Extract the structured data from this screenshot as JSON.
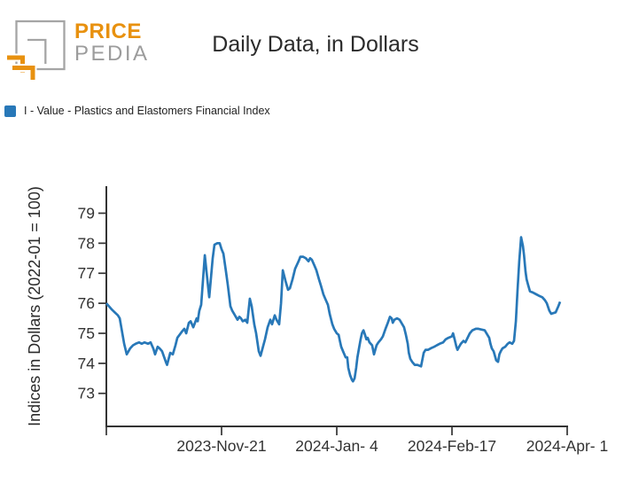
{
  "header": {
    "logo": {
      "price": "PRICE",
      "pedia": "PEDIA"
    },
    "title": "Daily Data, in Dollars"
  },
  "legend": {
    "label": "I - Value - Plastics and Elastomers Financial Index",
    "swatch_color": "#2878b8"
  },
  "colors": {
    "line": "#2878b8",
    "axis": "#333333",
    "logo_orange": "#e8910f",
    "logo_gray": "#a5a5a5"
  },
  "chart_data": {
    "type": "line",
    "title": "Daily Data, in Dollars",
    "xlabel": "",
    "ylabel": "Indices in Dollars (2022-01 = 100)",
    "grid": false,
    "legend_position": "top-left",
    "x_unit": "days since 2023-10-08",
    "x_start_date": "2023-10-08",
    "x_end_date": "2024-04-01",
    "xlim": [
      0,
      176
    ],
    "ylim": [
      71.9,
      79.9
    ],
    "yticks": [
      73,
      74,
      75,
      76,
      77,
      78,
      79
    ],
    "xticks": [
      {
        "d": 0,
        "label": ""
      },
      {
        "d": 44,
        "label": "2023-Nov-21"
      },
      {
        "d": 88,
        "label": "2024-Jan- 4"
      },
      {
        "d": 132,
        "label": "2024-Feb-17"
      },
      {
        "d": 176,
        "label": "2024-Apr- 1"
      }
    ],
    "series": [
      {
        "name": "I - Value - Plastics and Elastomers Financial Index",
        "color": "#2878b8",
        "points": [
          [
            0,
            76.0
          ],
          [
            2,
            75.8
          ],
          [
            4.4,
            75.6
          ],
          [
            5.1,
            75.5
          ],
          [
            6.8,
            74.65
          ],
          [
            7.8,
            74.3
          ],
          [
            9.1,
            74.5
          ],
          [
            10.2,
            74.6
          ],
          [
            11.2,
            74.65
          ],
          [
            12.5,
            74.7
          ],
          [
            13.5,
            74.65
          ],
          [
            14.6,
            74.7
          ],
          [
            15.9,
            74.65
          ],
          [
            16.9,
            74.7
          ],
          [
            17.9,
            74.5
          ],
          [
            18.6,
            74.3
          ],
          [
            19.6,
            74.55
          ],
          [
            20.3,
            74.5
          ],
          [
            21.3,
            74.4
          ],
          [
            22.7,
            74.05
          ],
          [
            23.2,
            73.95
          ],
          [
            24.4,
            74.35
          ],
          [
            25.4,
            74.3
          ],
          [
            26.4,
            74.6
          ],
          [
            27.1,
            74.85
          ],
          [
            28.8,
            75.05
          ],
          [
            29.8,
            75.15
          ],
          [
            30.5,
            75.0
          ],
          [
            31.5,
            75.35
          ],
          [
            32.2,
            75.4
          ],
          [
            33.2,
            75.2
          ],
          [
            34.5,
            75.5
          ],
          [
            34.9,
            75.4
          ],
          [
            35.5,
            75.75
          ],
          [
            36.2,
            75.95
          ],
          [
            37.6,
            77.6
          ],
          [
            38.3,
            77.0
          ],
          [
            39.3,
            76.2
          ],
          [
            39.9,
            76.8
          ],
          [
            40.6,
            77.5
          ],
          [
            41.3,
            77.95
          ],
          [
            42.3,
            78.0
          ],
          [
            43.3,
            78.0
          ],
          [
            44.0,
            77.8
          ],
          [
            44.7,
            77.65
          ],
          [
            45.7,
            77.05
          ],
          [
            46.4,
            76.6
          ],
          [
            47.4,
            75.9
          ],
          [
            48.1,
            75.75
          ],
          [
            49.1,
            75.6
          ],
          [
            50.1,
            75.45
          ],
          [
            50.8,
            75.55
          ],
          [
            51.4,
            75.5
          ],
          [
            52.1,
            75.4
          ],
          [
            53.1,
            75.45
          ],
          [
            53.8,
            75.35
          ],
          [
            54.8,
            76.15
          ],
          [
            55.5,
            75.9
          ],
          [
            56.5,
            75.3
          ],
          [
            57.2,
            75.0
          ],
          [
            58.2,
            74.4
          ],
          [
            58.9,
            74.25
          ],
          [
            60.6,
            74.8
          ],
          [
            61.6,
            75.2
          ],
          [
            62.6,
            75.45
          ],
          [
            63.3,
            75.3
          ],
          [
            64.3,
            75.6
          ],
          [
            65.0,
            75.45
          ],
          [
            66.0,
            75.3
          ],
          [
            66.7,
            76.0
          ],
          [
            67.4,
            77.1
          ],
          [
            68.4,
            76.75
          ],
          [
            69.4,
            76.45
          ],
          [
            70.1,
            76.5
          ],
          [
            71.1,
            76.8
          ],
          [
            72.1,
            77.15
          ],
          [
            73.4,
            77.4
          ],
          [
            74.1,
            77.55
          ],
          [
            75.1,
            77.55
          ],
          [
            76.2,
            77.5
          ],
          [
            77.2,
            77.4
          ],
          [
            77.8,
            77.5
          ],
          [
            78.5,
            77.45
          ],
          [
            79.5,
            77.25
          ],
          [
            80.2,
            77.1
          ],
          [
            81.2,
            76.8
          ],
          [
            81.9,
            76.6
          ],
          [
            82.9,
            76.3
          ],
          [
            83.6,
            76.15
          ],
          [
            84.6,
            75.95
          ],
          [
            85.3,
            75.65
          ],
          [
            86.3,
            75.3
          ],
          [
            87.0,
            75.15
          ],
          [
            88.0,
            75.0
          ],
          [
            88.7,
            74.95
          ],
          [
            89.2,
            74.75
          ],
          [
            89.7,
            74.55
          ],
          [
            90.4,
            74.4
          ],
          [
            91.4,
            74.2
          ],
          [
            92.0,
            74.2
          ],
          [
            92.4,
            73.85
          ],
          [
            93.1,
            73.6
          ],
          [
            93.8,
            73.45
          ],
          [
            94.2,
            73.4
          ],
          [
            94.8,
            73.5
          ],
          [
            95.4,
            73.85
          ],
          [
            95.9,
            74.2
          ],
          [
            96.5,
            74.5
          ],
          [
            97.1,
            74.8
          ],
          [
            97.6,
            75.0
          ],
          [
            98.2,
            75.1
          ],
          [
            98.8,
            74.95
          ],
          [
            99.3,
            74.8
          ],
          [
            99.8,
            74.85
          ],
          [
            100.5,
            74.7
          ],
          [
            101.5,
            74.6
          ],
          [
            102.2,
            74.3
          ],
          [
            103.2,
            74.6
          ],
          [
            103.9,
            74.7
          ],
          [
            104.9,
            74.8
          ],
          [
            105.6,
            74.9
          ],
          [
            106.6,
            75.15
          ],
          [
            107.3,
            75.3
          ],
          [
            108.3,
            75.55
          ],
          [
            109.0,
            75.5
          ],
          [
            109.4,
            75.35
          ],
          [
            110.0,
            75.45
          ],
          [
            111.0,
            75.5
          ],
          [
            112.0,
            75.45
          ],
          [
            113.7,
            75.2
          ],
          [
            114.4,
            74.95
          ],
          [
            115.1,
            74.65
          ],
          [
            115.5,
            74.35
          ],
          [
            116.1,
            74.15
          ],
          [
            116.8,
            74.05
          ],
          [
            117.8,
            73.95
          ],
          [
            118.8,
            73.95
          ],
          [
            120.2,
            73.9
          ],
          [
            121.2,
            74.35
          ],
          [
            121.9,
            74.45
          ],
          [
            122.9,
            74.45
          ],
          [
            123.9,
            74.5
          ],
          [
            125.2,
            74.55
          ],
          [
            126.2,
            74.6
          ],
          [
            127.3,
            74.65
          ],
          [
            128.6,
            74.7
          ],
          [
            129.6,
            74.8
          ],
          [
            130.6,
            74.85
          ],
          [
            132.0,
            74.9
          ],
          [
            132.4,
            75.0
          ],
          [
            133.0,
            74.8
          ],
          [
            133.7,
            74.55
          ],
          [
            134.1,
            74.45
          ],
          [
            134.7,
            74.55
          ],
          [
            135.4,
            74.65
          ],
          [
            136.4,
            74.75
          ],
          [
            137.1,
            74.7
          ],
          [
            138.8,
            75.0
          ],
          [
            139.8,
            75.1
          ],
          [
            141.1,
            75.15
          ],
          [
            142.1,
            75.15
          ],
          [
            144.5,
            75.1
          ],
          [
            146.2,
            74.85
          ],
          [
            146.7,
            74.65
          ],
          [
            147.2,
            74.5
          ],
          [
            147.9,
            74.4
          ],
          [
            148.9,
            74.1
          ],
          [
            149.6,
            74.05
          ],
          [
            150.1,
            74.3
          ],
          [
            150.6,
            74.4
          ],
          [
            151.3,
            74.5
          ],
          [
            152.3,
            74.55
          ],
          [
            153.3,
            74.65
          ],
          [
            154.0,
            74.7
          ],
          [
            155.0,
            74.65
          ],
          [
            155.7,
            74.75
          ],
          [
            156.4,
            75.4
          ],
          [
            157.0,
            76.4
          ],
          [
            157.7,
            77.4
          ],
          [
            158.4,
            78.2
          ],
          [
            159.1,
            77.9
          ],
          [
            159.5,
            77.6
          ],
          [
            160.1,
            77.05
          ],
          [
            160.5,
            76.8
          ],
          [
            161.1,
            76.6
          ],
          [
            161.8,
            76.4
          ],
          [
            163.1,
            76.35
          ],
          [
            164.2,
            76.3
          ],
          [
            165.2,
            76.25
          ],
          [
            166.5,
            76.2
          ],
          [
            167.5,
            76.1
          ],
          [
            168.2,
            76.0
          ],
          [
            169.2,
            75.75
          ],
          [
            169.9,
            75.65
          ],
          [
            171.6,
            75.7
          ],
          [
            172.6,
            75.9
          ],
          [
            173.3,
            76.05
          ]
        ]
      }
    ]
  }
}
